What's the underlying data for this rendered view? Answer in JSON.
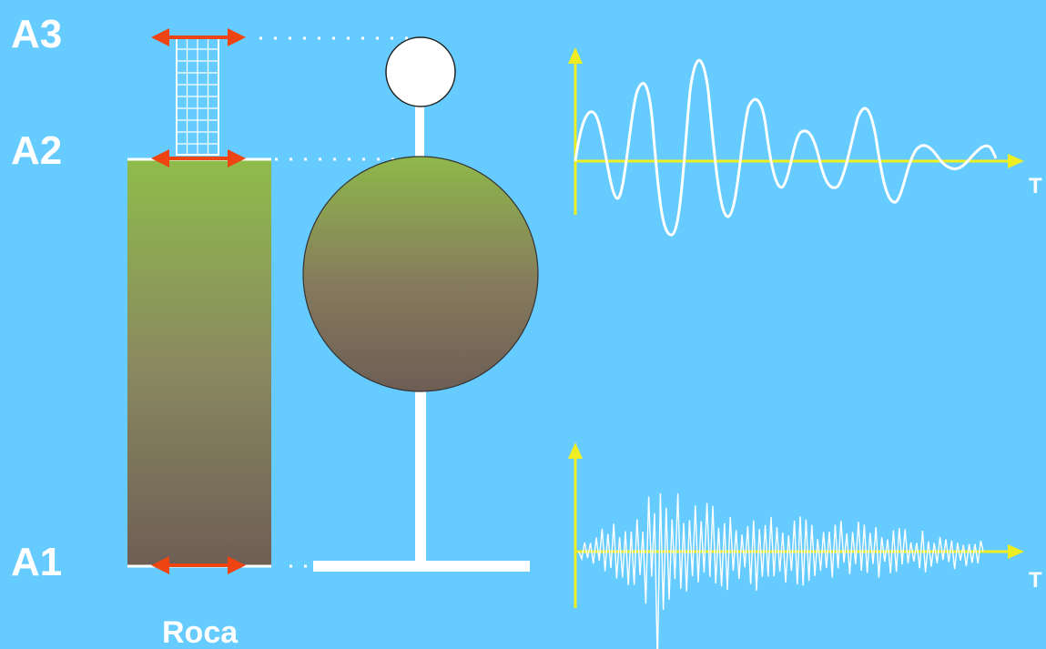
{
  "labels": {
    "level_top": "A3",
    "level_mid": "A2",
    "level_base": "A1",
    "rock": "Roca",
    "axis_upper": "T",
    "axis_lower": "T"
  },
  "colors": {
    "background": "#66ccff",
    "arrow": "#ee4411",
    "axis": "#eeee22",
    "trace": "#ffffff",
    "soil_top": "#8fbc4a",
    "soil_bottom": "#6e5e55"
  }
}
